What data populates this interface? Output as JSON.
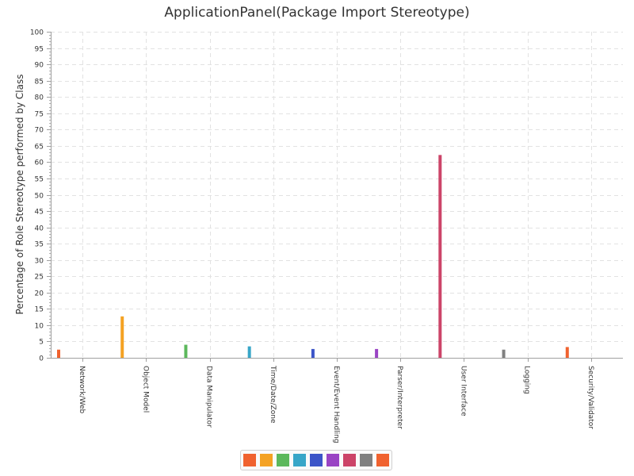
{
  "chart_data": {
    "type": "bar",
    "title": "ApplicationPanel(Package Import Stereotype)",
    "xlabel": "",
    "ylabel": "Percentage of Role Stereotype performed by Class",
    "ylim": [
      0,
      100
    ],
    "ytick_step": 5,
    "grid": true,
    "legend_position": "bottom-center",
    "categories": [
      "Network/Web",
      "Object Model",
      "Data Manipulator",
      "Time/Date/Zone",
      "Event/Event Handling",
      "Parser/Interpreter",
      "User Interface",
      "Logging",
      "Security/Validator"
    ],
    "values": [
      2.5,
      12.7,
      4.0,
      3.5,
      2.7,
      2.7,
      62.2,
      2.5,
      3.3
    ],
    "colors": [
      "#f0622f",
      "#f4a223",
      "#5cb85c",
      "#38a6c8",
      "#3c55c8",
      "#9a44c4",
      "#cc4468",
      "#808080",
      "#f0622f"
    ],
    "legend_colors": [
      "#f0622f",
      "#f4a223",
      "#5cb85c",
      "#38a6c8",
      "#3c55c8",
      "#9a44c4",
      "#cc4468",
      "#808080",
      "#f0622f"
    ]
  }
}
